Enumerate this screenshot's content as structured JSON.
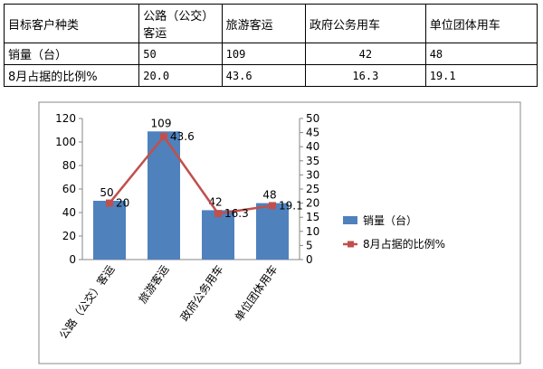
{
  "table": {
    "headers": [
      "目标客户种类",
      "公路（公交）客运",
      "旅游客运",
      "政府公务用车",
      "单位团体用车"
    ],
    "rows": [
      {
        "label": "销量（台）",
        "values": [
          "50",
          "109",
          "42",
          "48"
        ]
      },
      {
        "label": "8月占据的比例%",
        "values": [
          "20.0",
          "43.6",
          "16.3",
          "19.1"
        ]
      }
    ]
  },
  "chart_data": {
    "type": "bar",
    "categories": [
      "公路（公交）客运",
      "旅游客运",
      "政府公务用车",
      "单位团体用车"
    ],
    "series": [
      {
        "name": "销量（台）",
        "type": "bar",
        "axis": "left",
        "color": "#4f81bd",
        "values": [
          50,
          109,
          42,
          48
        ],
        "labels": [
          "50",
          "109",
          "42",
          "48"
        ]
      },
      {
        "name": "8月占据的比例%",
        "type": "line",
        "axis": "right",
        "color": "#c0504d",
        "values": [
          20.0,
          43.6,
          16.3,
          19.1
        ],
        "labels": [
          "20",
          "43.6",
          "16.3",
          "19.1"
        ]
      }
    ],
    "ylim_left": [
      0,
      120
    ],
    "yticks_left": [
      0,
      20,
      40,
      60,
      80,
      100,
      120
    ],
    "ylim_right": [
      0,
      50
    ],
    "yticks_right": [
      0,
      5,
      10,
      15,
      20,
      25,
      30,
      35,
      40,
      45,
      50
    ],
    "legend_position": "right",
    "grid": false
  }
}
